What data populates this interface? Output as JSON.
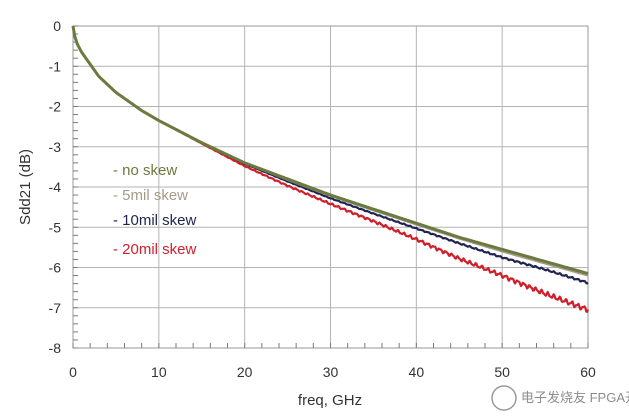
{
  "chart_data": {
    "type": "line",
    "title": "",
    "xlabel": "freq, GHz",
    "ylabel": "Sdd21 (dB)",
    "xlim": [
      0,
      60
    ],
    "ylim": [
      -8,
      0
    ],
    "x_ticks": [
      0,
      10,
      20,
      30,
      40,
      50,
      60
    ],
    "y_ticks": [
      0,
      -1,
      -2,
      -3,
      -4,
      -5,
      -6,
      -7,
      -8
    ],
    "grid": true,
    "legend_position": "left-middle",
    "series": [
      {
        "name": "- no skew",
        "color": "#6b7a3e",
        "x": [
          0,
          0.2,
          0.5,
          1,
          2,
          3,
          5,
          8,
          10,
          15,
          20,
          25,
          30,
          35,
          40,
          45,
          50,
          55,
          60
        ],
        "y": [
          0,
          -0.25,
          -0.45,
          -0.65,
          -0.95,
          -1.25,
          -1.65,
          -2.1,
          -2.35,
          -2.9,
          -3.4,
          -3.8,
          -4.2,
          -4.55,
          -4.9,
          -5.25,
          -5.55,
          -5.85,
          -6.15
        ]
      },
      {
        "name": "- 5mil skew",
        "color": "#a89a8a",
        "x": [
          0,
          0.2,
          0.5,
          1,
          2,
          3,
          5,
          8,
          10,
          15,
          20,
          25,
          30,
          35,
          40,
          45,
          50,
          55,
          60
        ],
        "y": [
          0,
          -0.25,
          -0.45,
          -0.65,
          -0.95,
          -1.25,
          -1.65,
          -2.1,
          -2.35,
          -2.9,
          -3.4,
          -3.82,
          -4.22,
          -4.58,
          -4.93,
          -5.28,
          -5.6,
          -5.9,
          -6.2
        ]
      },
      {
        "name": "- 10mil skew",
        "color": "#1f2550",
        "x": [
          0,
          0.2,
          0.5,
          1,
          2,
          3,
          5,
          8,
          10,
          15,
          20,
          25,
          30,
          35,
          40,
          45,
          50,
          55,
          60
        ],
        "y": [
          0,
          -0.25,
          -0.45,
          -0.65,
          -0.95,
          -1.25,
          -1.65,
          -2.1,
          -2.35,
          -2.9,
          -3.42,
          -3.86,
          -4.28,
          -4.66,
          -5.03,
          -5.4,
          -5.75,
          -6.05,
          -6.38
        ]
      },
      {
        "name": "- 20mil skew",
        "color": "#d01f2a",
        "x": [
          0,
          0.2,
          0.5,
          1,
          2,
          3,
          5,
          8,
          10,
          15,
          20,
          25,
          30,
          35,
          40,
          45,
          50,
          55,
          60
        ],
        "y": [
          0,
          -0.25,
          -0.45,
          -0.65,
          -0.95,
          -1.25,
          -1.65,
          -2.1,
          -2.35,
          -2.92,
          -3.48,
          -3.97,
          -4.42,
          -4.85,
          -5.3,
          -5.78,
          -6.2,
          -6.65,
          -7.05
        ]
      }
    ]
  },
  "watermark": "电子发烧友 FPGA开发圈"
}
